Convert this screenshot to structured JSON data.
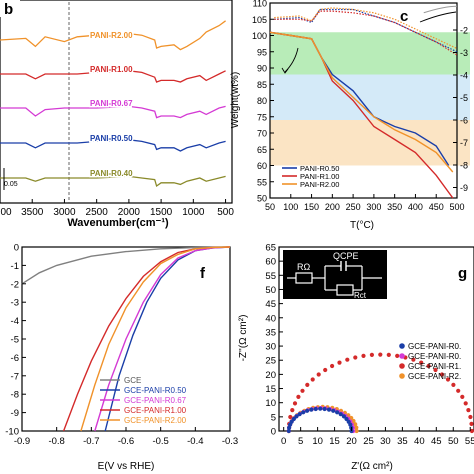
{
  "panel_b": {
    "letter": "b",
    "xlabel": "Wavenumber(cm⁻¹)",
    "scale_label": "0.05",
    "xticks": [
      "00",
      "3500",
      "3000",
      "2500",
      "2000",
      "1500",
      "1000",
      "500"
    ],
    "labels": [
      "PANI-R2.00",
      "PANI-R1.00",
      "PANI-R0.67",
      "PANI-R0.50",
      "PANI-R0.40"
    ]
  },
  "panel_c": {
    "letter": "c",
    "ylabel": "Weight(wt%)",
    "xlabel": "T(°C)",
    "yticks": [
      "110",
      "105",
      "100",
      "95",
      "90",
      "85",
      "80",
      "75",
      "70",
      "65",
      "60",
      "55",
      "50"
    ],
    "xticks": [
      "50",
      "100",
      "150",
      "200",
      "250",
      "300",
      "350",
      "400",
      "450",
      "500"
    ],
    "rticks": [
      "-2",
      "-3",
      "-4",
      "-5",
      "-6",
      "-7",
      "-8",
      "-9"
    ],
    "legend": [
      "PANI-R0.50",
      "PANI-R1.00",
      "PANI-R2.00"
    ]
  },
  "panel_f": {
    "letter": "f",
    "xlabel": "E(V vs RHE)",
    "yticks": [
      "0",
      "-1",
      "-2",
      "-3",
      "-4",
      "-5",
      "-6",
      "-7",
      "-8",
      "-9",
      "-10"
    ],
    "xticks": [
      "-0.9",
      "-0.8",
      "-0.7",
      "-0.6",
      "-0.5",
      "-0.4",
      "-0.3"
    ],
    "legend": [
      "GCE",
      "GCE-PANI-R0.50",
      "GCE-PANI-R0.67",
      "GCE-PANI-R1.00",
      "GCE-PANI-R2.00"
    ]
  },
  "panel_g": {
    "letter": "g",
    "ylabel": "-Z''(Ω cm²)",
    "xlabel": "Z'(Ω cm²)",
    "yticks": [
      "65",
      "60",
      "55",
      "50",
      "45",
      "40",
      "35",
      "30",
      "25",
      "20",
      "15",
      "10",
      "5",
      "0"
    ],
    "xticks": [
      "0",
      "5",
      "10",
      "15",
      "20",
      "25",
      "30",
      "35",
      "40",
      "45",
      "50",
      "55"
    ],
    "circuit": {
      "r_omega": "RΩ",
      "q_cpe": "QCPE",
      "r_ct": "Rct"
    },
    "legend": [
      "GCE-PANI-R0.",
      "GCE-PANI-R0.",
      "GCE-PANI-R1.",
      "GCE-PANI-R2."
    ]
  },
  "colors": {
    "r040": "#8a8a2a",
    "r050": "#1a3ea8",
    "r067": "#d43ad4",
    "r100": "#d42a2a",
    "r200": "#f0922a",
    "gce": "#808080",
    "green_band": "#b8ecb8",
    "blue_band": "#d4eaf8",
    "orange_band": "#fbe4c4"
  },
  "chart_data": [
    {
      "type": "line",
      "panel": "b",
      "title": "",
      "xlabel": "Wavenumber(cm⁻¹)",
      "ylabel": "",
      "xlim": [
        4000,
        400
      ],
      "series": [
        {
          "name": "PANI-R2.00",
          "x": [
            4000,
            3600,
            3450,
            3300,
            3000,
            2800,
            2500,
            2000,
            1800,
            1600,
            1570,
            1500,
            1300,
            1200,
            1100,
            900,
            800,
            600,
            500
          ],
          "y": [
            0,
            0.01,
            -0.04,
            0.02,
            -0.01,
            0.02,
            0.03,
            0.04,
            0.03,
            0.0,
            -0.05,
            -0.04,
            -0.03,
            -0.06,
            -0.04,
            0.01,
            0.05,
            0.09,
            0.12
          ]
        },
        {
          "name": "PANI-R1.00",
          "x": [
            4000,
            3600,
            3450,
            3300,
            3000,
            2800,
            2500,
            2000,
            1800,
            1600,
            1570,
            1500,
            1300,
            1200,
            1100,
            900,
            800,
            600,
            500
          ],
          "y": [
            0,
            0.0,
            -0.03,
            0.0,
            0.0,
            0.0,
            0.01,
            0.02,
            0.01,
            -0.02,
            -0.05,
            -0.04,
            -0.04,
            -0.05,
            -0.03,
            -0.01,
            -0.04,
            0.0,
            0.02
          ]
        },
        {
          "name": "PANI-R0.67",
          "x": [
            4000,
            3600,
            3450,
            3300,
            3000,
            2800,
            2500,
            2000,
            1800,
            1600,
            1570,
            1500,
            1300,
            1200,
            1100,
            900,
            800,
            600,
            500
          ],
          "y": [
            0,
            0.0,
            -0.05,
            -0.01,
            0.0,
            0.0,
            0.0,
            0.01,
            0.0,
            -0.02,
            -0.06,
            -0.05,
            -0.05,
            -0.06,
            -0.04,
            -0.02,
            -0.04,
            0.0,
            0.01
          ]
        },
        {
          "name": "PANI-R0.50",
          "x": [
            4000,
            3600,
            3450,
            3300,
            3000,
            2800,
            2500,
            2000,
            1800,
            1600,
            1570,
            1500,
            1300,
            1200,
            1100,
            900,
            800,
            600,
            500
          ],
          "y": [
            0,
            0.0,
            -0.03,
            0.0,
            0.0,
            0.0,
            0.01,
            0.02,
            0.01,
            -0.01,
            -0.04,
            -0.03,
            -0.03,
            -0.05,
            -0.03,
            -0.01,
            -0.03,
            0.0,
            0.01
          ]
        },
        {
          "name": "PANI-R0.40",
          "x": [
            4000,
            3600,
            3450,
            3300,
            3000,
            2800,
            2500,
            2000,
            1800,
            1600,
            1570,
            1500,
            1300,
            1200,
            1100,
            900,
            800,
            600,
            500
          ],
          "y": [
            0,
            0.0,
            -0.02,
            0.0,
            0.0,
            0.0,
            0.0,
            0.01,
            0.0,
            -0.01,
            -0.05,
            -0.03,
            -0.03,
            -0.04,
            -0.02,
            0.0,
            -0.02,
            0.0,
            0.01
          ]
        }
      ]
    },
    {
      "type": "line",
      "panel": "c",
      "title": "",
      "xlabel": "T(°C)",
      "ylabel": "Weight(wt%)",
      "xlim": [
        50,
        500
      ],
      "ylim": [
        50,
        110
      ],
      "bands": [
        [
          88,
          101
        ],
        [
          74,
          88
        ],
        [
          60,
          74
        ]
      ],
      "series": [
        {
          "name": "PANI-R0.50",
          "x": [
            50,
            100,
            150,
            175,
            200,
            250,
            300,
            350,
            400,
            450,
            480
          ],
          "y": [
            101,
            100,
            99,
            93,
            88,
            83,
            75,
            72,
            70,
            66,
            60
          ]
        },
        {
          "name": "PANI-R1.00",
          "x": [
            50,
            100,
            150,
            175,
            200,
            250,
            300,
            350,
            400,
            450,
            490
          ],
          "y": [
            101,
            100,
            99,
            93,
            86,
            80,
            72,
            68,
            64,
            57,
            50
          ]
        },
        {
          "name": "PANI-R2.00",
          "x": [
            50,
            100,
            150,
            175,
            200,
            250,
            300,
            350,
            400,
            450,
            490
          ],
          "y": [
            101,
            100,
            99,
            93,
            87,
            81,
            75,
            71,
            68,
            64,
            58
          ]
        }
      ]
    },
    {
      "type": "line",
      "panel": "f",
      "title": "",
      "xlabel": "E(V vs RHE)",
      "ylabel": "",
      "xlim": [
        -0.9,
        -0.3
      ],
      "ylim": [
        -10,
        0
      ],
      "series": [
        {
          "name": "GCE",
          "x": [
            -0.9,
            -0.85,
            -0.8,
            -0.7,
            -0.6,
            -0.5,
            -0.4,
            -0.3
          ],
          "y": [
            -2,
            -1.4,
            -1.0,
            -0.5,
            -0.25,
            -0.1,
            -0.03,
            0
          ]
        },
        {
          "name": "GCE-PANI-R0.50",
          "x": [
            -0.66,
            -0.62,
            -0.58,
            -0.54,
            -0.5,
            -0.45,
            -0.4,
            -0.35,
            -0.3
          ],
          "y": [
            -10,
            -7,
            -4.8,
            -3,
            -1.7,
            -0.7,
            -0.2,
            -0.05,
            0
          ]
        },
        {
          "name": "GCE-PANI-R0.67",
          "x": [
            -0.69,
            -0.65,
            -0.6,
            -0.55,
            -0.5,
            -0.45,
            -0.4,
            -0.35,
            -0.3
          ],
          "y": [
            -10,
            -7.5,
            -5,
            -3,
            -1.5,
            -0.6,
            -0.2,
            -0.05,
            0
          ]
        },
        {
          "name": "GCE-PANI-R1.00",
          "x": [
            -0.78,
            -0.74,
            -0.7,
            -0.65,
            -0.6,
            -0.55,
            -0.5,
            -0.45,
            -0.4,
            -0.35,
            -0.3
          ],
          "y": [
            -10,
            -8,
            -6.2,
            -4.3,
            -2.8,
            -1.6,
            -0.8,
            -0.3,
            -0.1,
            -0.02,
            0
          ]
        },
        {
          "name": "GCE-PANI-R2.00",
          "x": [
            -0.73,
            -0.69,
            -0.65,
            -0.6,
            -0.55,
            -0.5,
            -0.45,
            -0.4,
            -0.35,
            -0.3
          ],
          "y": [
            -10,
            -7.5,
            -5.3,
            -3.3,
            -1.9,
            -0.9,
            -0.4,
            -0.1,
            -0.02,
            0
          ]
        }
      ]
    },
    {
      "type": "scatter",
      "panel": "g",
      "title": "",
      "xlabel": "Z'(Ω cm²)",
      "ylabel": "-Z''(Ω cm²)",
      "xlim": [
        0,
        57
      ],
      "ylim": [
        0,
        65
      ],
      "series": [
        {
          "name": "GCE-PANI-R0.",
          "arc": {
            "r0": 1.5,
            "r1": 20
          }
        },
        {
          "name": "GCE-PANI-R0.",
          "arc": {
            "r0": 1.5,
            "r1": 20.5
          }
        },
        {
          "name": "GCE-PANI-R1.",
          "arc": {
            "r0": 1.5,
            "r1": 55.5
          }
        },
        {
          "name": "GCE-PANI-R2.",
          "arc": {
            "r0": 1.5,
            "r1": 21.5
          }
        }
      ]
    }
  ]
}
